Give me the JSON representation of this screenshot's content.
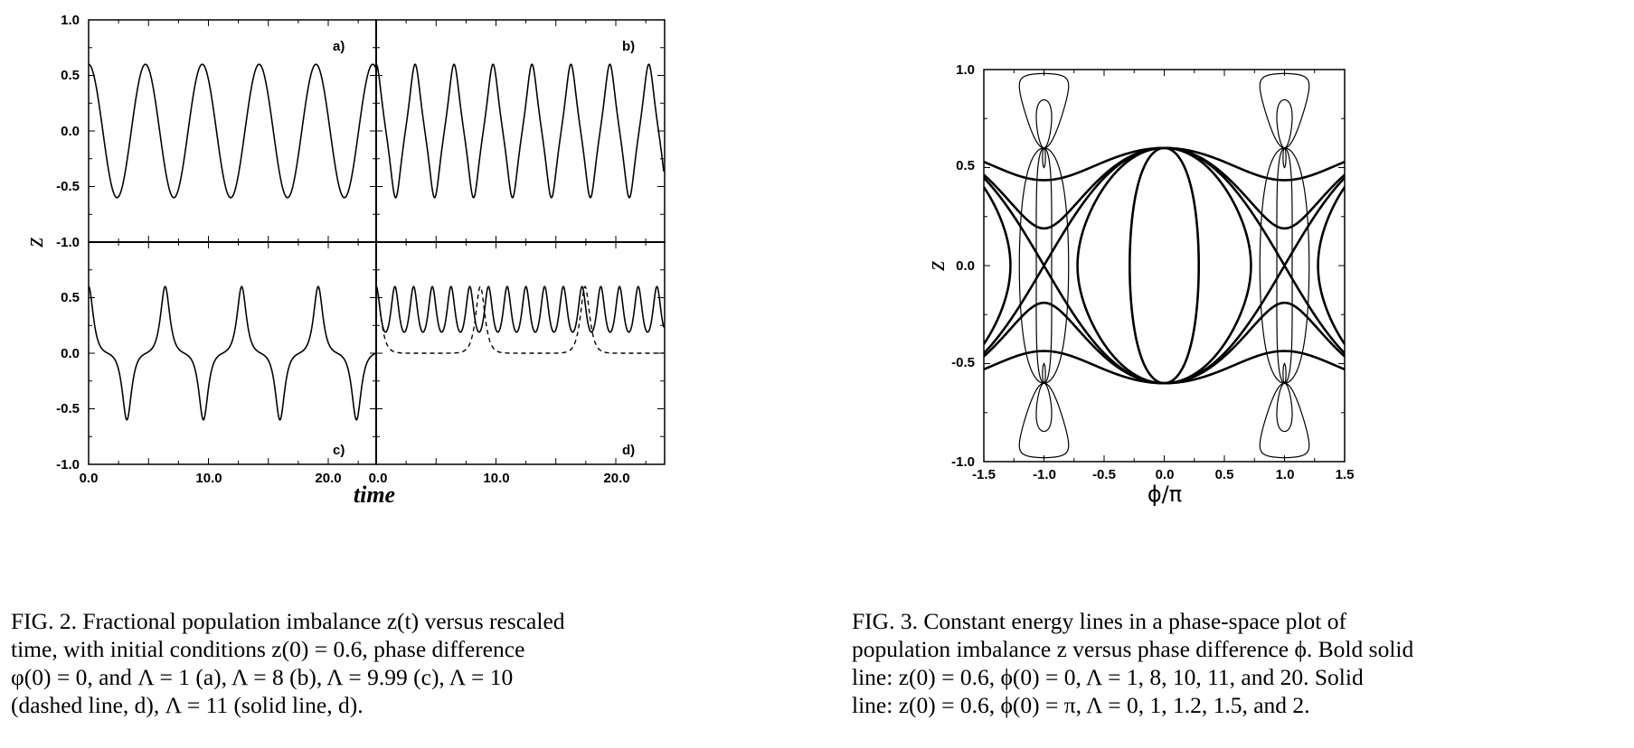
{
  "fig2": {
    "y_axis_label": "z",
    "x_axis_label": "time",
    "caption": [
      "FIG. 2.   Fractional population imbalance z(t) versus rescaled",
      "time,  with  initial  conditions  z(0) = 0.6,  phase  difference",
      "φ(0) = 0,  and  Λ = 1 (a),  Λ = 8 (b),  Λ = 9.99 (c),  Λ = 10",
      "(dashed line, d), Λ = 11 (solid line, d)."
    ]
  },
  "fig3": {
    "y_axis_label": "z",
    "x_axis_label": "ϕ/π",
    "caption": [
      "FIG. 3.   Constant  energy  lines  in  a  phase-space  plot  of",
      "population imbalance z versus phase difference ϕ.  Bold solid",
      "line: z(0) = 0.6,  ϕ(0) = 0,  Λ = 1, 8, 10, 11, and 20.   Solid",
      "line: z(0) = 0.6,  ϕ(0) = π,  Λ = 0, 1, 1.2, 1.5, and 2."
    ]
  },
  "chart_data": [
    {
      "type": "line",
      "panel": "a)",
      "params": {
        "Lambda": 1,
        "z0": 0.6,
        "phi0": 0
      },
      "x_ticks": [
        "0.0",
        "10.0",
        "20.0"
      ],
      "y_ticks": [
        "0.5",
        "0.0",
        "-0.5",
        "-1.0"
      ],
      "top_tick": "1.0",
      "xlim": [
        0,
        24
      ],
      "ylim": [
        -1,
        1
      ],
      "series": [
        {
          "style": "solid",
          "Lambda": 1
        }
      ]
    },
    {
      "type": "line",
      "panel": "b)",
      "params": {
        "Lambda": 8,
        "z0": 0.6,
        "phi0": 0
      },
      "xlim": [
        0,
        24
      ],
      "ylim": [
        -1,
        1
      ],
      "series": [
        {
          "style": "solid",
          "Lambda": 8
        }
      ]
    },
    {
      "type": "line",
      "panel": "c)",
      "params": {
        "Lambda": 9.99,
        "z0": 0.6,
        "phi0": 0
      },
      "x_ticks": [
        "0.0",
        "10.0",
        "20.0"
      ],
      "y_ticks": [
        "0.5",
        "0.0",
        "-0.5",
        "-1.0"
      ],
      "xlim": [
        0,
        24
      ],
      "ylim": [
        -1,
        1
      ],
      "series": [
        {
          "style": "solid",
          "Lambda": 9.99
        }
      ]
    },
    {
      "type": "line",
      "panel": "d)",
      "params": {
        "z0": 0.6,
        "phi0": 0
      },
      "x_ticks": [
        "0.0",
        "10.0",
        "20.0"
      ],
      "xlim": [
        0,
        24
      ],
      "ylim": [
        -1,
        1
      ],
      "series": [
        {
          "style": "dashed",
          "Lambda": 10
        },
        {
          "style": "solid",
          "Lambda": 11
        }
      ]
    },
    {
      "type": "line",
      "panel": "phase-space",
      "x_ticks": [
        "-1.5",
        "-1.0",
        "-0.5",
        "0.0",
        "0.5",
        "1.0",
        "1.5"
      ],
      "y_ticks": [
        "1.0",
        "0.5",
        "0.0",
        "-0.5",
        "-1.0"
      ],
      "xlim": [
        -1.5,
        1.5
      ],
      "ylim": [
        -1,
        1
      ],
      "series": [
        {
          "style": "bold",
          "phi0": 0,
          "z0": 0.6,
          "Lambda": [
            1,
            8,
            10,
            11,
            20
          ]
        },
        {
          "style": "solid",
          "phi0_over_pi": 1,
          "z0": 0.6,
          "Lambda": [
            0,
            1,
            1.2,
            1.5,
            2
          ]
        }
      ]
    }
  ]
}
